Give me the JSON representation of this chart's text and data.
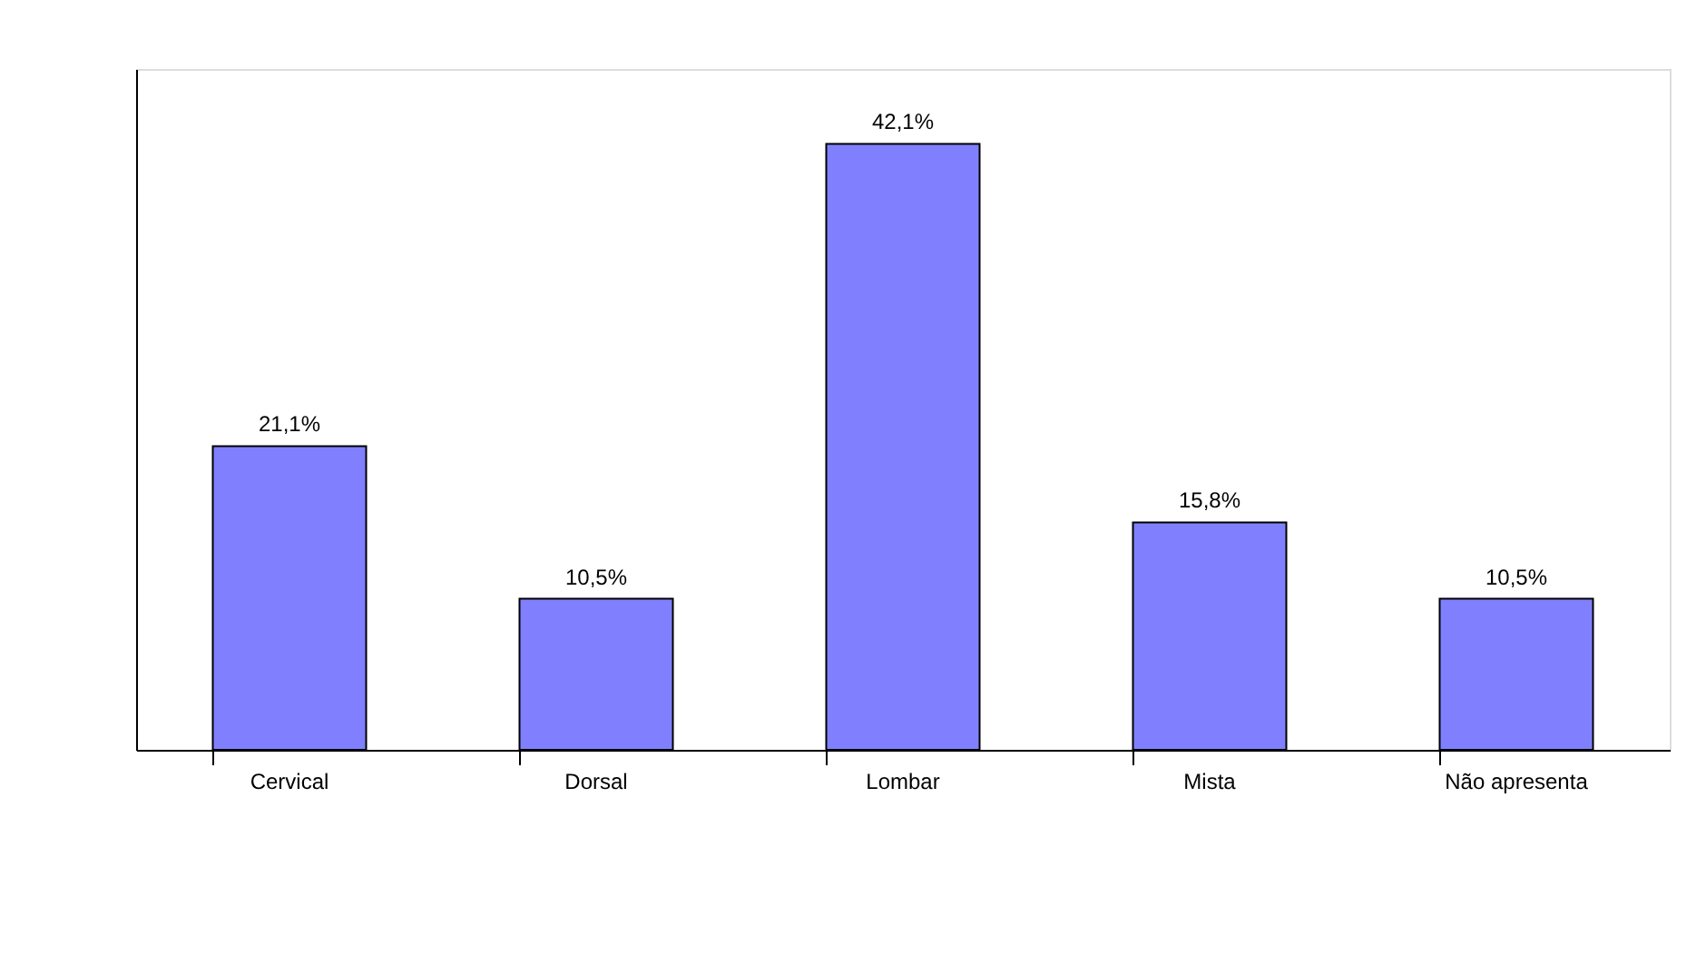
{
  "chart_data": {
    "type": "bar",
    "categories": [
      "Cervical",
      "Dorsal",
      "Lombar",
      "Mista",
      "Não apresenta"
    ],
    "values": [
      21.1,
      10.5,
      42.1,
      15.8,
      10.5
    ],
    "value_labels": [
      "21,1%",
      "10,5%",
      "42,1%",
      "15,8%",
      "10,5%"
    ],
    "color": "#8080ff",
    "ylim": [
      0,
      47.3
    ],
    "tick_labels": "x",
    "grid": false
  }
}
